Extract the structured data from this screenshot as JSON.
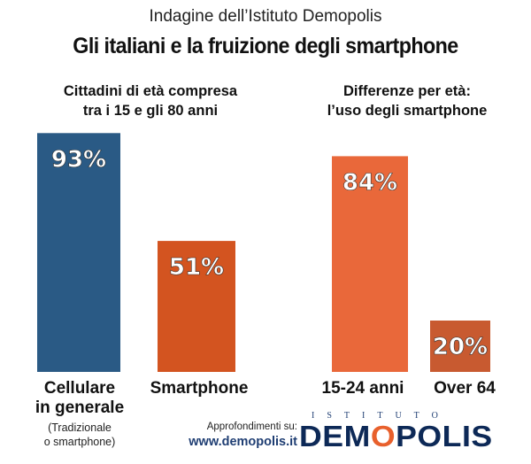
{
  "header": {
    "supertitle": "Indagine dell’Istituto Demopolis",
    "title": "Gli italiani e la fruizione degli smartphone"
  },
  "chart_data": [
    {
      "type": "bar",
      "subtitle_lines": [
        "Cittadini di età compresa",
        "tra i 15 e gli 80 anni"
      ],
      "categories": [
        "Cellulare in generale",
        "Smartphone"
      ],
      "category_lines": [
        [
          "Cellulare",
          "in generale"
        ],
        [
          "Smartphone"
        ]
      ],
      "values": [
        93,
        51
      ],
      "value_labels": [
        "93%",
        "51%"
      ],
      "colors": [
        "#2a5a85",
        "#d35420"
      ],
      "note_lines": [
        "(Tradizionale",
        "o smartphone)"
      ],
      "ylim": [
        0,
        100
      ]
    },
    {
      "type": "bar",
      "subtitle_lines": [
        "Differenze per età:",
        "l’uso degli smartphone"
      ],
      "categories": [
        "15-24 anni",
        "Over 64"
      ],
      "category_lines": [
        [
          "15-24 anni"
        ],
        [
          "Over 64"
        ]
      ],
      "values": [
        84,
        20
      ],
      "value_labels": [
        "84%",
        "20%"
      ],
      "colors": [
        "#e9683a",
        "#c85a30"
      ],
      "ylim": [
        0,
        100
      ]
    }
  ],
  "footer": {
    "label": "Approfondimenti su:",
    "url": "www.demopolis.it",
    "logo_top": "ISTITUTO",
    "logo_main_a": "DEM",
    "logo_main_dot": "O",
    "logo_main_b": "POLIS"
  }
}
